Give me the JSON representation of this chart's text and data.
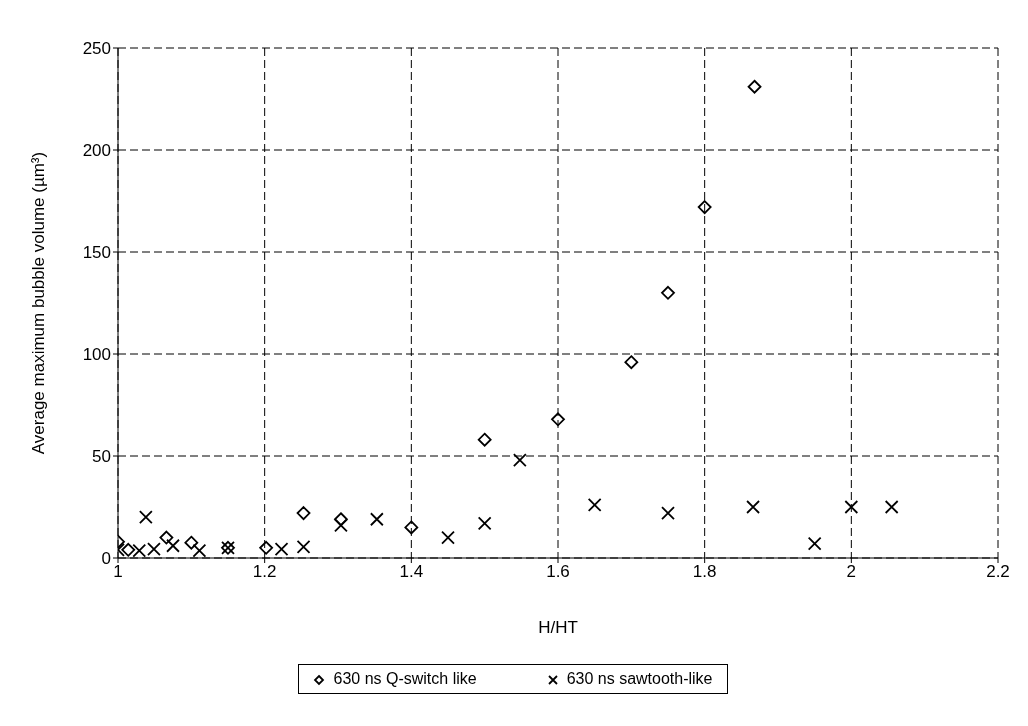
{
  "chart_data": {
    "type": "scatter",
    "xlabel": "H/HT",
    "ylabel": "Average maximum bubble volume (µm³)",
    "xlim": [
      1,
      2.2
    ],
    "xticks": [
      1,
      1.2,
      1.4,
      1.6,
      1.8,
      2,
      2.2
    ],
    "ylim": [
      0,
      250
    ],
    "yticks": [
      0,
      50,
      100,
      150,
      200,
      250
    ],
    "grid": true,
    "legend": "bottom",
    "series": [
      {
        "name": "630 ns Q-switch like",
        "color": "#000000",
        "marker": "diamond",
        "x": [
          1.0,
          1.014,
          1.066,
          1.1,
          1.15,
          1.202,
          1.253,
          1.304,
          1.4,
          1.5,
          1.6,
          1.7,
          1.75,
          1.8,
          1.868
        ],
        "values": [
          8,
          4,
          10,
          7.5,
          5,
          5,
          22,
          19,
          15,
          58,
          68,
          96,
          130,
          172,
          231
        ]
      },
      {
        "name": "630 ns sawtooth-like",
        "color": "#000000",
        "marker": "cross",
        "x": [
          1.0,
          1.029,
          1.038,
          1.049,
          1.075,
          1.111,
          1.15,
          1.223,
          1.253,
          1.304,
          1.353,
          1.45,
          1.5,
          1.548,
          1.65,
          1.75,
          1.866,
          1.95,
          2.0,
          2.055
        ],
        "values": [
          4,
          3.6,
          20,
          4.4,
          6,
          3.6,
          5,
          4.4,
          5.5,
          16,
          19,
          10,
          17,
          48,
          26,
          22,
          25,
          7,
          25,
          25
        ]
      }
    ]
  }
}
